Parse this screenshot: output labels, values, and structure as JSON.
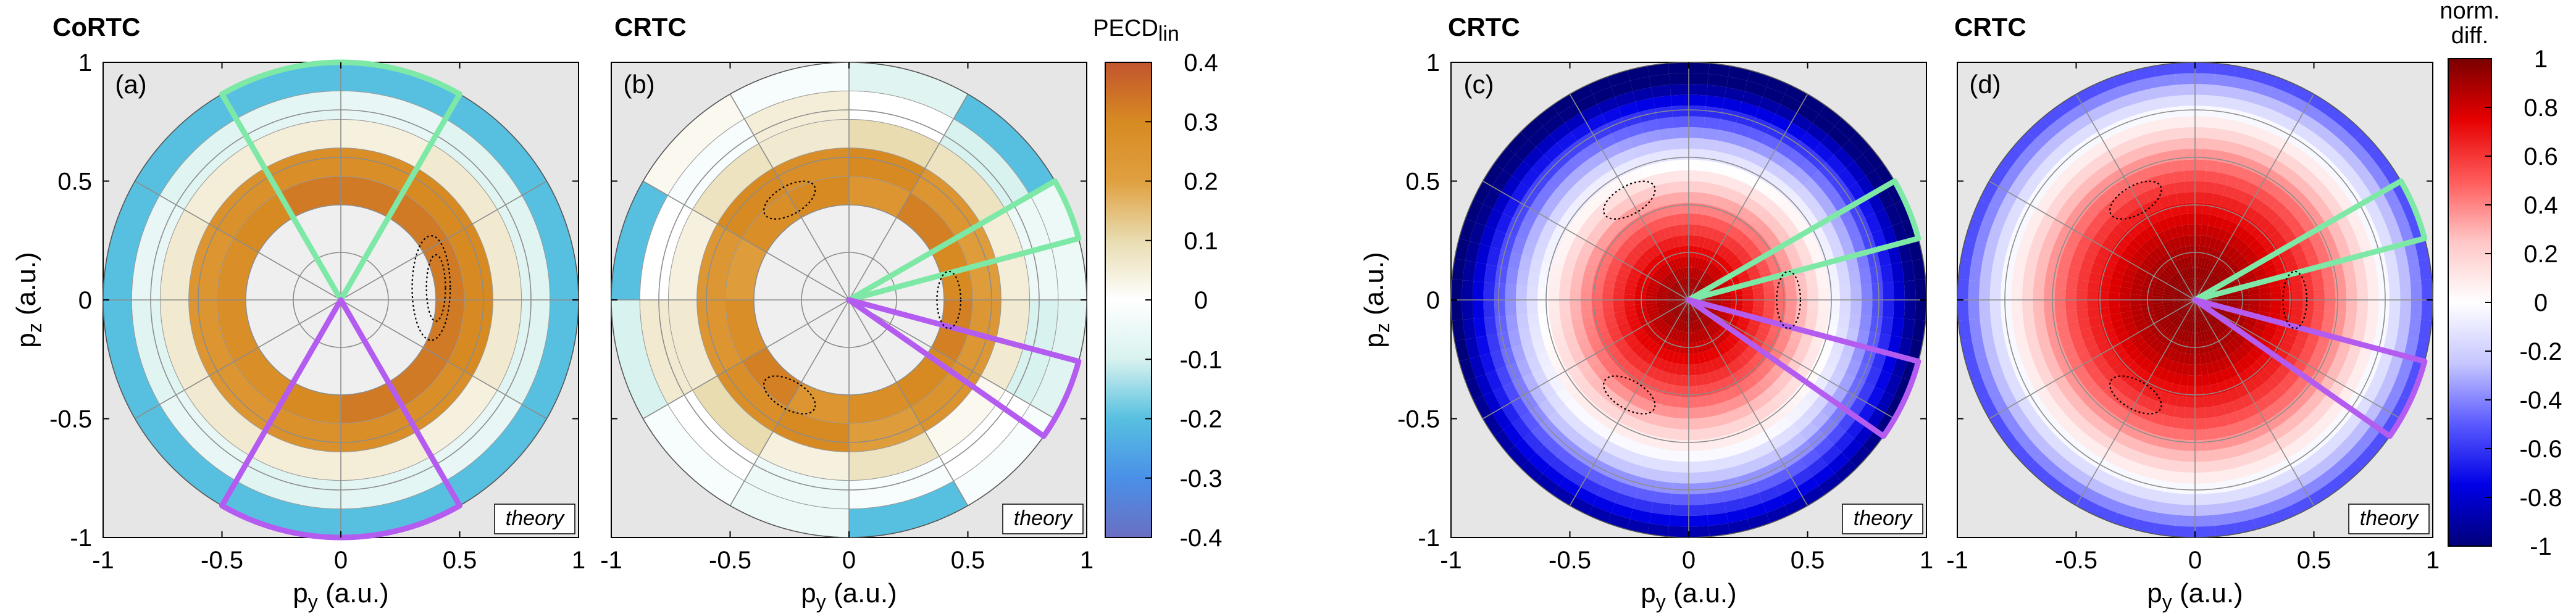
{
  "figure": {
    "colorbar_left_label": "PECD",
    "colorbar_left_label_sub": "lin",
    "colorbar_right_label": [
      "norm.",
      "diff."
    ],
    "theory_tag": "theory"
  },
  "colors": {
    "background_panel": "#e6e6e6",
    "grid": "#8c8c8c",
    "green_sector": "#7ee8a6",
    "purple_sector": "#b45cf0",
    "contour": "#000000"
  },
  "chart_data": [
    {
      "panel": "(a)",
      "title": "CoRTC",
      "type": "heatmap",
      "coordinate": "polar",
      "xlabel": "p_y (a.u.)",
      "ylabel": "p_z (a.u.)",
      "xticks": [
        "-1",
        "-0.5",
        "0",
        "0.5",
        "1"
      ],
      "yticks": [
        "1",
        "0.5",
        "0",
        "-0.5",
        "-1"
      ],
      "xlim": [
        -1,
        1
      ],
      "ylim": [
        -1,
        1
      ],
      "radial_bins": [
        [
          0.4,
          0.52
        ],
        [
          0.52,
          0.64
        ],
        [
          0.64,
          0.76
        ],
        [
          0.76,
          0.88
        ],
        [
          0.88,
          1.0
        ]
      ],
      "angular_bins": 12,
      "values_by_ring_inner_to_outer": [
        [
          0.33,
          0.33,
          0.33,
          0.33,
          0.3,
          0.28,
          0.28,
          0.28,
          0.3,
          0.33,
          0.33,
          0.33
        ],
        [
          0.3,
          0.3,
          0.28,
          0.28,
          0.27,
          0.25,
          0.25,
          0.25,
          0.27,
          0.28,
          0.28,
          0.3
        ],
        [
          0.06,
          0.06,
          0.04,
          0.05,
          0.05,
          0.06,
          0.06,
          0.06,
          0.05,
          0.05,
          0.04,
          0.06
        ],
        [
          -0.08,
          -0.08,
          -0.06,
          -0.07,
          -0.08,
          -0.06,
          -0.08,
          -0.06,
          -0.08,
          -0.07,
          -0.06,
          -0.08
        ],
        [
          -0.2,
          -0.2,
          -0.2,
          -0.2,
          -0.2,
          -0.2,
          -0.2,
          -0.2,
          -0.2,
          -0.2,
          -0.2,
          -0.2
        ]
      ],
      "green_sector_deg": [
        60,
        120
      ],
      "purple_sector_deg": [
        240,
        300
      ],
      "colorbar": "PECDlin",
      "annotation": "theory"
    },
    {
      "panel": "(b)",
      "title": "CRTC",
      "type": "heatmap",
      "coordinate": "polar",
      "xlabel": "p_y (a.u.)",
      "ylabel": "",
      "xticks": [
        "-1",
        "-0.5",
        "0",
        "0.5",
        "1"
      ],
      "xlim": [
        -1,
        1
      ],
      "ylim": [
        -1,
        1
      ],
      "radial_bins": [
        [
          0.4,
          0.52
        ],
        [
          0.52,
          0.64
        ],
        [
          0.64,
          0.76
        ],
        [
          0.76,
          0.88
        ],
        [
          0.88,
          1.0
        ]
      ],
      "angular_bins": 12,
      "values_by_ring_inner_to_outer": [
        [
          0.3,
          0.32,
          0.25,
          0.3,
          0.28,
          0.22,
          0.28,
          0.32,
          0.25,
          0.28,
          0.3,
          0.32
        ],
        [
          0.22,
          0.25,
          0.3,
          0.28,
          0.3,
          0.24,
          0.25,
          0.28,
          0.3,
          0.22,
          0.26,
          0.24
        ],
        [
          0.05,
          0.08,
          0.1,
          0.06,
          0.08,
          0.04,
          0.06,
          0.1,
          0.04,
          0.08,
          0.02,
          0.06
        ],
        [
          -0.05,
          -0.1,
          0.0,
          0.05,
          -0.02,
          0.0,
          0.06,
          0.0,
          -0.05,
          -0.02,
          0.0,
          -0.1
        ],
        [
          -0.05,
          -0.2,
          -0.08,
          -0.02,
          0.02,
          -0.2,
          -0.1,
          -0.02,
          -0.05,
          -0.2,
          -0.02,
          -0.08
        ]
      ],
      "green_sector_deg": [
        15,
        30
      ],
      "purple_sector_deg": [
        -35,
        -15
      ],
      "colorbar": "PECDlin",
      "annotation": "theory"
    },
    {
      "panel": "(c)",
      "title": "CRTC",
      "type": "heatmap",
      "coordinate": "polar",
      "xlabel": "p_y (a.u.)",
      "ylabel": "p_z (a.u.)",
      "xticks": [
        "-1",
        "-0.5",
        "0",
        "0.5",
        "1"
      ],
      "yticks": [
        "1",
        "0.5",
        "0",
        "-0.5",
        "-1"
      ],
      "xlim": [
        -1,
        1
      ],
      "ylim": [
        -1,
        1
      ],
      "value_range": [
        -1,
        1
      ],
      "profile": "high (≈0.9) at centre, decreasing to ≈-0.9 near the rim; stronger negative lobes in lower-left and upper-left / upper-right regions",
      "green_sector_deg": [
        15,
        30
      ],
      "purple_sector_deg": [
        -35,
        -15
      ],
      "colorbar": "norm. diff.",
      "annotation": "theory"
    },
    {
      "panel": "(d)",
      "title": "CRTC",
      "type": "heatmap",
      "coordinate": "polar",
      "xlabel": "p_y (a.u.)",
      "ylabel": "",
      "xticks": [
        "-1",
        "-0.5",
        "0",
        "0.5",
        "1"
      ],
      "xlim": [
        -1,
        1
      ],
      "ylim": [
        -1,
        1
      ],
      "value_range": [
        -1,
        1
      ],
      "profile": "high (≈0.95) at centre, smoothly decreasing to ≈-0.6 at the rim",
      "green_sector_deg": [
        15,
        30
      ],
      "purple_sector_deg": [
        -35,
        -15
      ],
      "colorbar": "norm. diff.",
      "annotation": "theory"
    },
    {
      "type": "colorbar",
      "label": "PECDlin",
      "ticks": [
        "0.4",
        "0.3",
        "0.2",
        "0.1",
        "0",
        "-0.1",
        "-0.2",
        "-0.3",
        "-0.4"
      ],
      "range": [
        -0.4,
        0.4
      ],
      "colormap": [
        "#6a6fc2",
        "#4a90e8",
        "#57c0e0",
        "#d8f2ef",
        "#ffffff",
        "#e8dcb0",
        "#e0a040",
        "#d78a22",
        "#c2552e"
      ]
    },
    {
      "type": "colorbar",
      "label": "norm. diff.",
      "ticks": [
        "1",
        "0.8",
        "0.6",
        "0.4",
        "0.2",
        "0",
        "-0.2",
        "-0.4",
        "-0.6",
        "-0.8",
        "-1"
      ],
      "range": [
        -1,
        1
      ],
      "colormap": [
        "#00007a",
        "#0000e6",
        "#5a5aff",
        "#c6c6ff",
        "#ffffff",
        "#ffc6c6",
        "#ff5a5a",
        "#e60000",
        "#7a0000"
      ]
    }
  ]
}
